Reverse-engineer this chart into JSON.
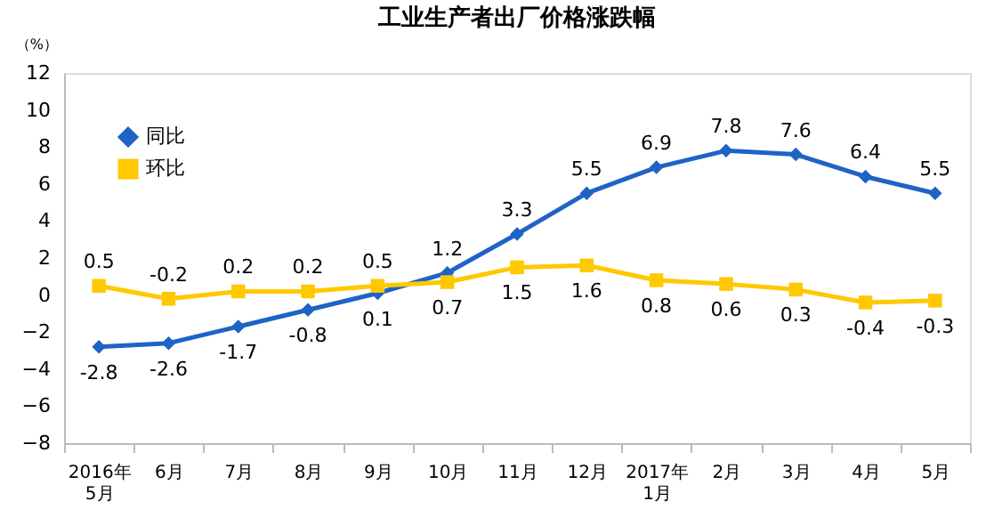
{
  "chart_data": {
    "type": "line",
    "title": "工业生产者出厂价格涨跌幅",
    "ylabel": "（%）",
    "categories": [
      "2016年\n5月",
      "6月",
      "7月",
      "8月",
      "9月",
      "10月",
      "11月",
      "12月",
      "2017年\n1月",
      "2月",
      "3月",
      "4月",
      "5月"
    ],
    "series": [
      {
        "name": "同比",
        "color": "#1f63c6",
        "marker": "diamond",
        "values": [
          -2.8,
          -2.6,
          -1.7,
          -0.8,
          0.1,
          1.2,
          3.3,
          5.5,
          6.9,
          7.8,
          7.6,
          6.4,
          5.5
        ]
      },
      {
        "name": "环比",
        "color": "#ffc800",
        "marker": "square",
        "values": [
          0.5,
          -0.2,
          0.2,
          0.2,
          0.5,
          0.7,
          1.5,
          1.6,
          0.8,
          0.6,
          0.3,
          -0.4,
          -0.3
        ]
      }
    ],
    "ylim": [
      -8,
      12
    ],
    "yticks": [
      -8,
      -6,
      -4,
      -2,
      0,
      2,
      4,
      6,
      8,
      10,
      12
    ],
    "data_labels": true,
    "grid": false,
    "legend": "top left"
  }
}
